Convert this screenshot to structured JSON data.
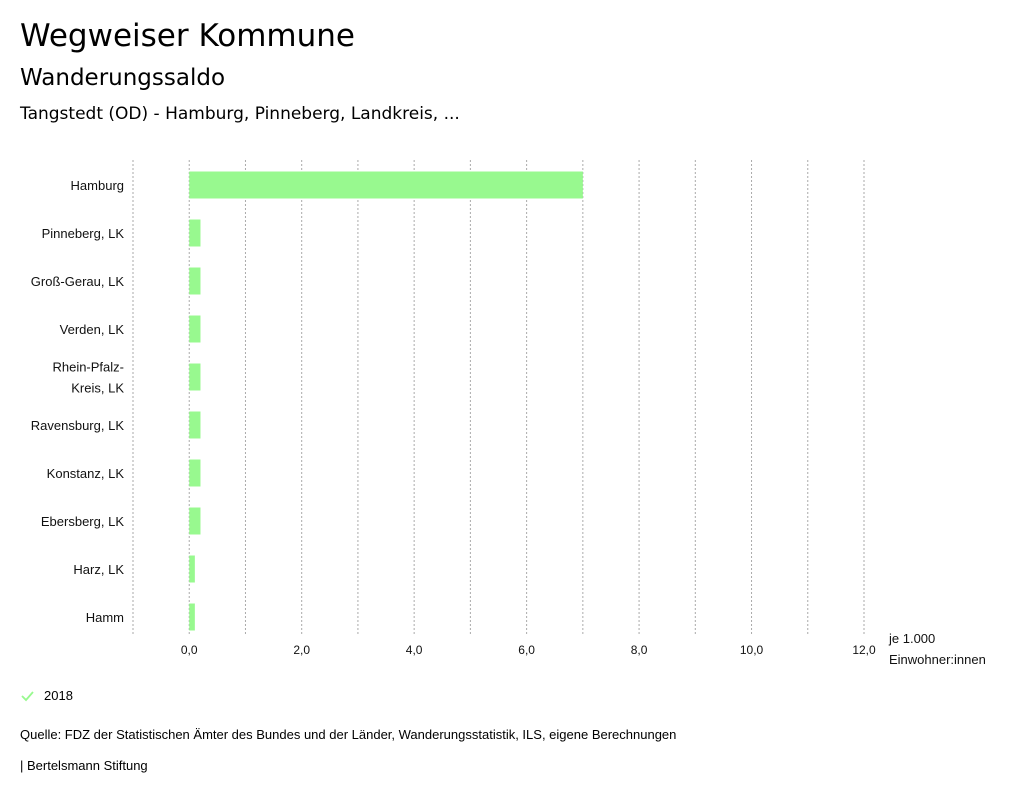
{
  "header": {
    "title": "Wegweiser Kommune",
    "subtitle": "Wanderungssaldo",
    "region": "Tangstedt (OD) - Hamburg, Pinneberg, Landkreis, ..."
  },
  "chart_data": {
    "type": "bar",
    "orientation": "horizontal",
    "categories": [
      "Hamburg",
      "Pinneberg, LK",
      "Groß-Gerau, LK",
      "Verden, LK",
      "Rhein-Pfalz-Kreis, LK",
      "Ravensburg, LK",
      "Konstanz, LK",
      "Ebersberg, LK",
      "Harz, LK",
      "Hamm"
    ],
    "category_label_lines": [
      [
        "Hamburg"
      ],
      [
        "Pinneberg, LK"
      ],
      [
        "Groß-Gerau, LK"
      ],
      [
        "Verden, LK"
      ],
      [
        "Rhein-Pfalz-",
        "Kreis, LK"
      ],
      [
        "Ravensburg, LK"
      ],
      [
        "Konstanz, LK"
      ],
      [
        "Ebersberg, LK"
      ],
      [
        "Harz, LK"
      ],
      [
        "Hamm"
      ]
    ],
    "series": [
      {
        "name": "2018",
        "values": [
          7.0,
          0.2,
          0.2,
          0.2,
          0.2,
          0.2,
          0.2,
          0.2,
          0.1,
          0.1
        ]
      }
    ],
    "xlim": [
      -1.0,
      12.0
    ],
    "xticks": [
      0,
      2,
      4,
      6,
      8,
      10,
      12
    ],
    "xtick_labels": [
      "0,0",
      "2,0",
      "4,0",
      "6,0",
      "8,0",
      "10,0",
      "12,0"
    ],
    "xlabel_lines": [
      "je 1.000",
      "Einwohner:innen"
    ],
    "grid": "vertical-dotted",
    "legend_position": "bottom-left",
    "bar_color": "#98f98f",
    "grid_color": "#aaaaaa"
  },
  "legend": {
    "label": "2018",
    "color": "#98f98f"
  },
  "footer": {
    "source": "Quelle: FDZ der Statistischen Ämter des Bundes und der Länder, Wanderungsstatistik, ILS, eigene Berechnungen",
    "publisher": "| Bertelsmann Stiftung"
  }
}
